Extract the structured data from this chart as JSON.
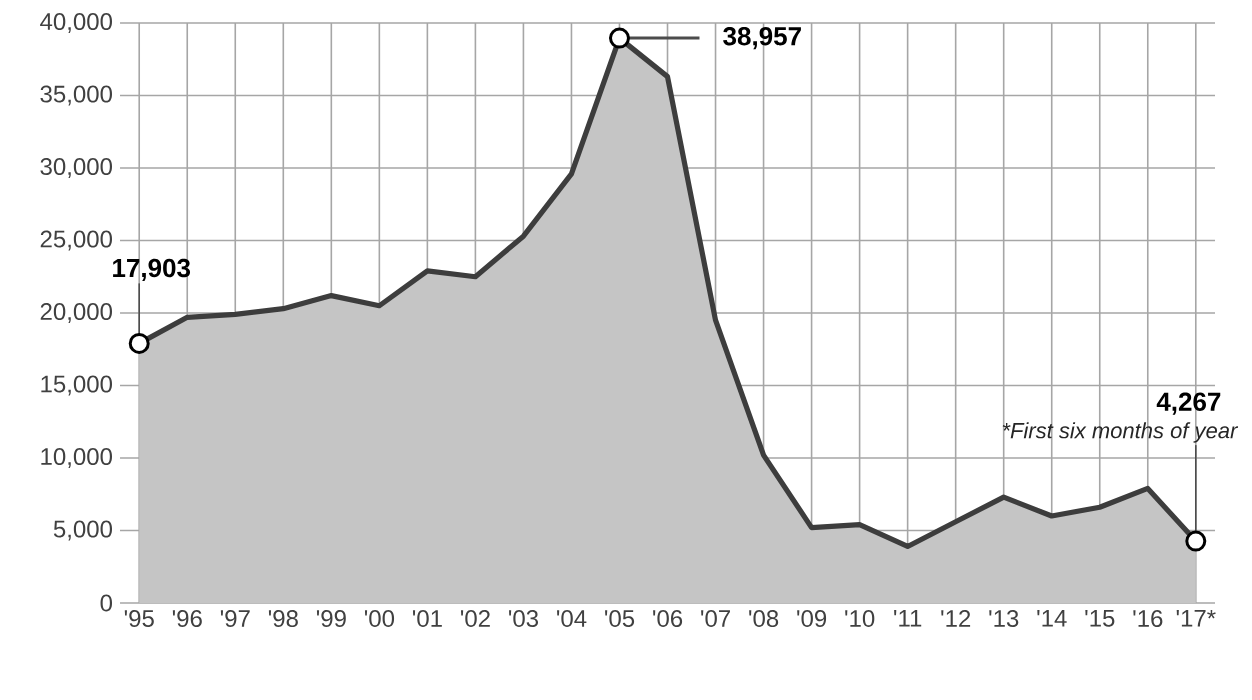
{
  "chart_data": {
    "type": "area",
    "categories": [
      "'95",
      "'96",
      "'97",
      "'98",
      "'99",
      "'00",
      "'01",
      "'02",
      "'03",
      "'04",
      "'05",
      "'06",
      "'07",
      "'08",
      "'09",
      "'10",
      "'11",
      "'12",
      "'13",
      "'14",
      "'15",
      "'16",
      "'17*"
    ],
    "series": [
      {
        "color": "#3d3d3d",
        "values": [
          17903,
          19700,
          19900,
          20300,
          21200,
          20500,
          22900,
          22500,
          25300,
          29600,
          38957,
          36300,
          19500,
          10200,
          5200,
          5400,
          3900,
          5600,
          7300,
          6000,
          6600,
          7900,
          4267
        ],
        "value_labels": [
          "17,903",
          null,
          null,
          null,
          null,
          null,
          null,
          null,
          null,
          null,
          "38,957",
          null,
          null,
          null,
          null,
          null,
          null,
          null,
          null,
          null,
          null,
          null,
          "4,267"
        ]
      }
    ],
    "ylim": [
      0,
      40000
    ],
    "yticks": [
      0,
      {
        "value": 5000,
        "label": "5,000"
      },
      {
        "value": 10000,
        "label": "10,000"
      },
      {
        "value": 15000,
        "label": "15,000"
      },
      {
        "value": 20000,
        "label": "20,000"
      },
      {
        "value": 25000,
        "label": "25,000"
      },
      {
        "value": 30000,
        "label": "30,000"
      },
      {
        "value": 35000,
        "label": "35,000"
      },
      {
        "value": 40000,
        "label": "40,000"
      }
    ],
    "grid": true,
    "marker": "none",
    "line_style": "solid",
    "annotations": [
      {
        "text": "*First six months of year",
        "x": "'17*",
        "y": 4267
      }
    ]
  }
}
